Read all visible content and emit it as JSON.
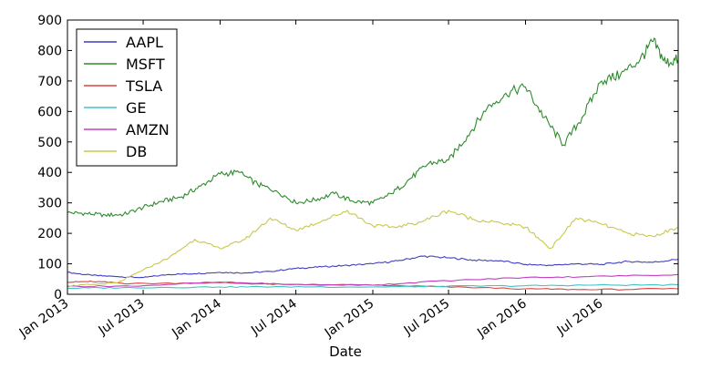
{
  "chart_data": {
    "type": "line",
    "title": "",
    "xlabel": "Date",
    "ylabel": "",
    "ylim": [
      0,
      900
    ],
    "xlim": [
      "2013-01-01",
      "2016-12-31"
    ],
    "y_ticks": [
      0,
      100,
      200,
      300,
      400,
      500,
      600,
      700,
      800,
      900
    ],
    "x_ticks": [
      {
        "date": "2013-01-01",
        "label": "Jan 2013"
      },
      {
        "date": "2013-07-01",
        "label": "Jul 2013"
      },
      {
        "date": "2014-01-01",
        "label": "Jan 2014"
      },
      {
        "date": "2014-07-01",
        "label": "Jul 2014"
      },
      {
        "date": "2015-01-01",
        "label": "Jan 2015"
      },
      {
        "date": "2015-07-01",
        "label": "Jul 2015"
      },
      {
        "date": "2016-01-01",
        "label": "Jan 2016"
      },
      {
        "date": "2016-07-01",
        "label": "Jul 2016"
      }
    ],
    "grid": false,
    "legend_position": "top-left",
    "series": [
      {
        "name": "AAPL",
        "color": "#3f3fbf",
        "x": [
          "2013-01-01",
          "2013-03-01",
          "2013-05-01",
          "2013-07-01",
          "2013-09-01",
          "2013-11-01",
          "2014-01-01",
          "2014-03-01",
          "2014-05-01",
          "2014-07-01",
          "2014-09-01",
          "2014-11-01",
          "2015-01-01",
          "2015-03-01",
          "2015-05-01",
          "2015-07-01",
          "2015-09-01",
          "2015-11-01",
          "2016-01-01",
          "2016-03-01",
          "2016-05-01",
          "2016-07-01",
          "2016-09-01",
          "2016-11-01",
          "2016-12-31"
        ],
        "values": [
          72,
          62,
          58,
          55,
          65,
          68,
          72,
          70,
          75,
          85,
          90,
          95,
          100,
          110,
          125,
          120,
          112,
          110,
          98,
          95,
          100,
          98,
          108,
          105,
          115
        ]
      },
      {
        "name": "MSFT",
        "color": "#2e8b2e",
        "x": [
          "2013-01-01",
          "2013-02-15",
          "2013-04-01",
          "2013-05-15",
          "2013-07-01",
          "2013-08-15",
          "2013-10-01",
          "2013-11-15",
          "2014-01-01",
          "2014-02-15",
          "2014-04-01",
          "2014-05-15",
          "2014-07-01",
          "2014-08-15",
          "2014-10-01",
          "2014-11-15",
          "2015-01-01",
          "2015-02-15",
          "2015-04-01",
          "2015-05-15",
          "2015-07-01",
          "2015-08-15",
          "2015-10-01",
          "2015-11-15",
          "2016-01-01",
          "2016-02-15",
          "2016-04-01",
          "2016-05-15",
          "2016-07-01",
          "2016-08-15",
          "2016-10-01",
          "2016-11-01",
          "2016-12-01",
          "2016-12-31"
        ],
        "values": [
          268,
          265,
          260,
          262,
          285,
          305,
          320,
          355,
          395,
          400,
          360,
          340,
          300,
          310,
          330,
          305,
          300,
          330,
          380,
          430,
          440,
          520,
          610,
          660,
          680,
          580,
          490,
          580,
          700,
          720,
          770,
          830,
          760,
          770
        ]
      },
      {
        "name": "TSLA",
        "color": "#d9453f",
        "x": [
          "2013-01-01",
          "2013-03-01",
          "2013-06-01",
          "2014-01-01",
          "2014-06-01",
          "2015-01-01",
          "2015-06-01",
          "2016-01-01",
          "2016-06-01",
          "2016-12-31"
        ],
        "values": [
          40,
          42,
          35,
          38,
          32,
          30,
          25,
          18,
          15,
          18
        ]
      },
      {
        "name": "GE",
        "color": "#40c4c4",
        "x": [
          "2013-01-01",
          "2013-06-01",
          "2014-01-01",
          "2014-06-01",
          "2015-01-01",
          "2015-06-01",
          "2016-01-01",
          "2016-06-01",
          "2016-12-31"
        ],
        "values": [
          20,
          22,
          24,
          25,
          24,
          26,
          28,
          30,
          31
        ]
      },
      {
        "name": "AMZN",
        "color": "#c040c0",
        "x": [
          "2013-01-01",
          "2013-06-01",
          "2014-01-01",
          "2014-06-01",
          "2015-01-01",
          "2015-06-01",
          "2016-01-01",
          "2016-06-01",
          "2016-12-31"
        ],
        "values": [
          26,
          27,
          40,
          33,
          30,
          43,
          55,
          58,
          65
        ]
      },
      {
        "name": "DB",
        "color": "#c8c84a",
        "x": [
          "2013-01-01",
          "2013-03-01",
          "2013-05-01",
          "2013-07-01",
          "2013-09-01",
          "2013-11-01",
          "2014-01-01",
          "2014-03-01",
          "2014-05-01",
          "2014-07-01",
          "2014-09-01",
          "2014-11-01",
          "2015-01-01",
          "2015-03-01",
          "2015-05-01",
          "2015-07-01",
          "2015-09-01",
          "2015-11-01",
          "2016-01-01",
          "2016-03-01",
          "2016-05-01",
          "2016-07-01",
          "2016-09-01",
          "2016-11-01",
          "2016-12-31"
        ],
        "values": [
          28,
          32,
          38,
          80,
          120,
          180,
          150,
          180,
          250,
          210,
          240,
          275,
          225,
          220,
          240,
          275,
          245,
          235,
          220,
          150,
          250,
          230,
          200,
          190,
          220
        ]
      }
    ]
  }
}
